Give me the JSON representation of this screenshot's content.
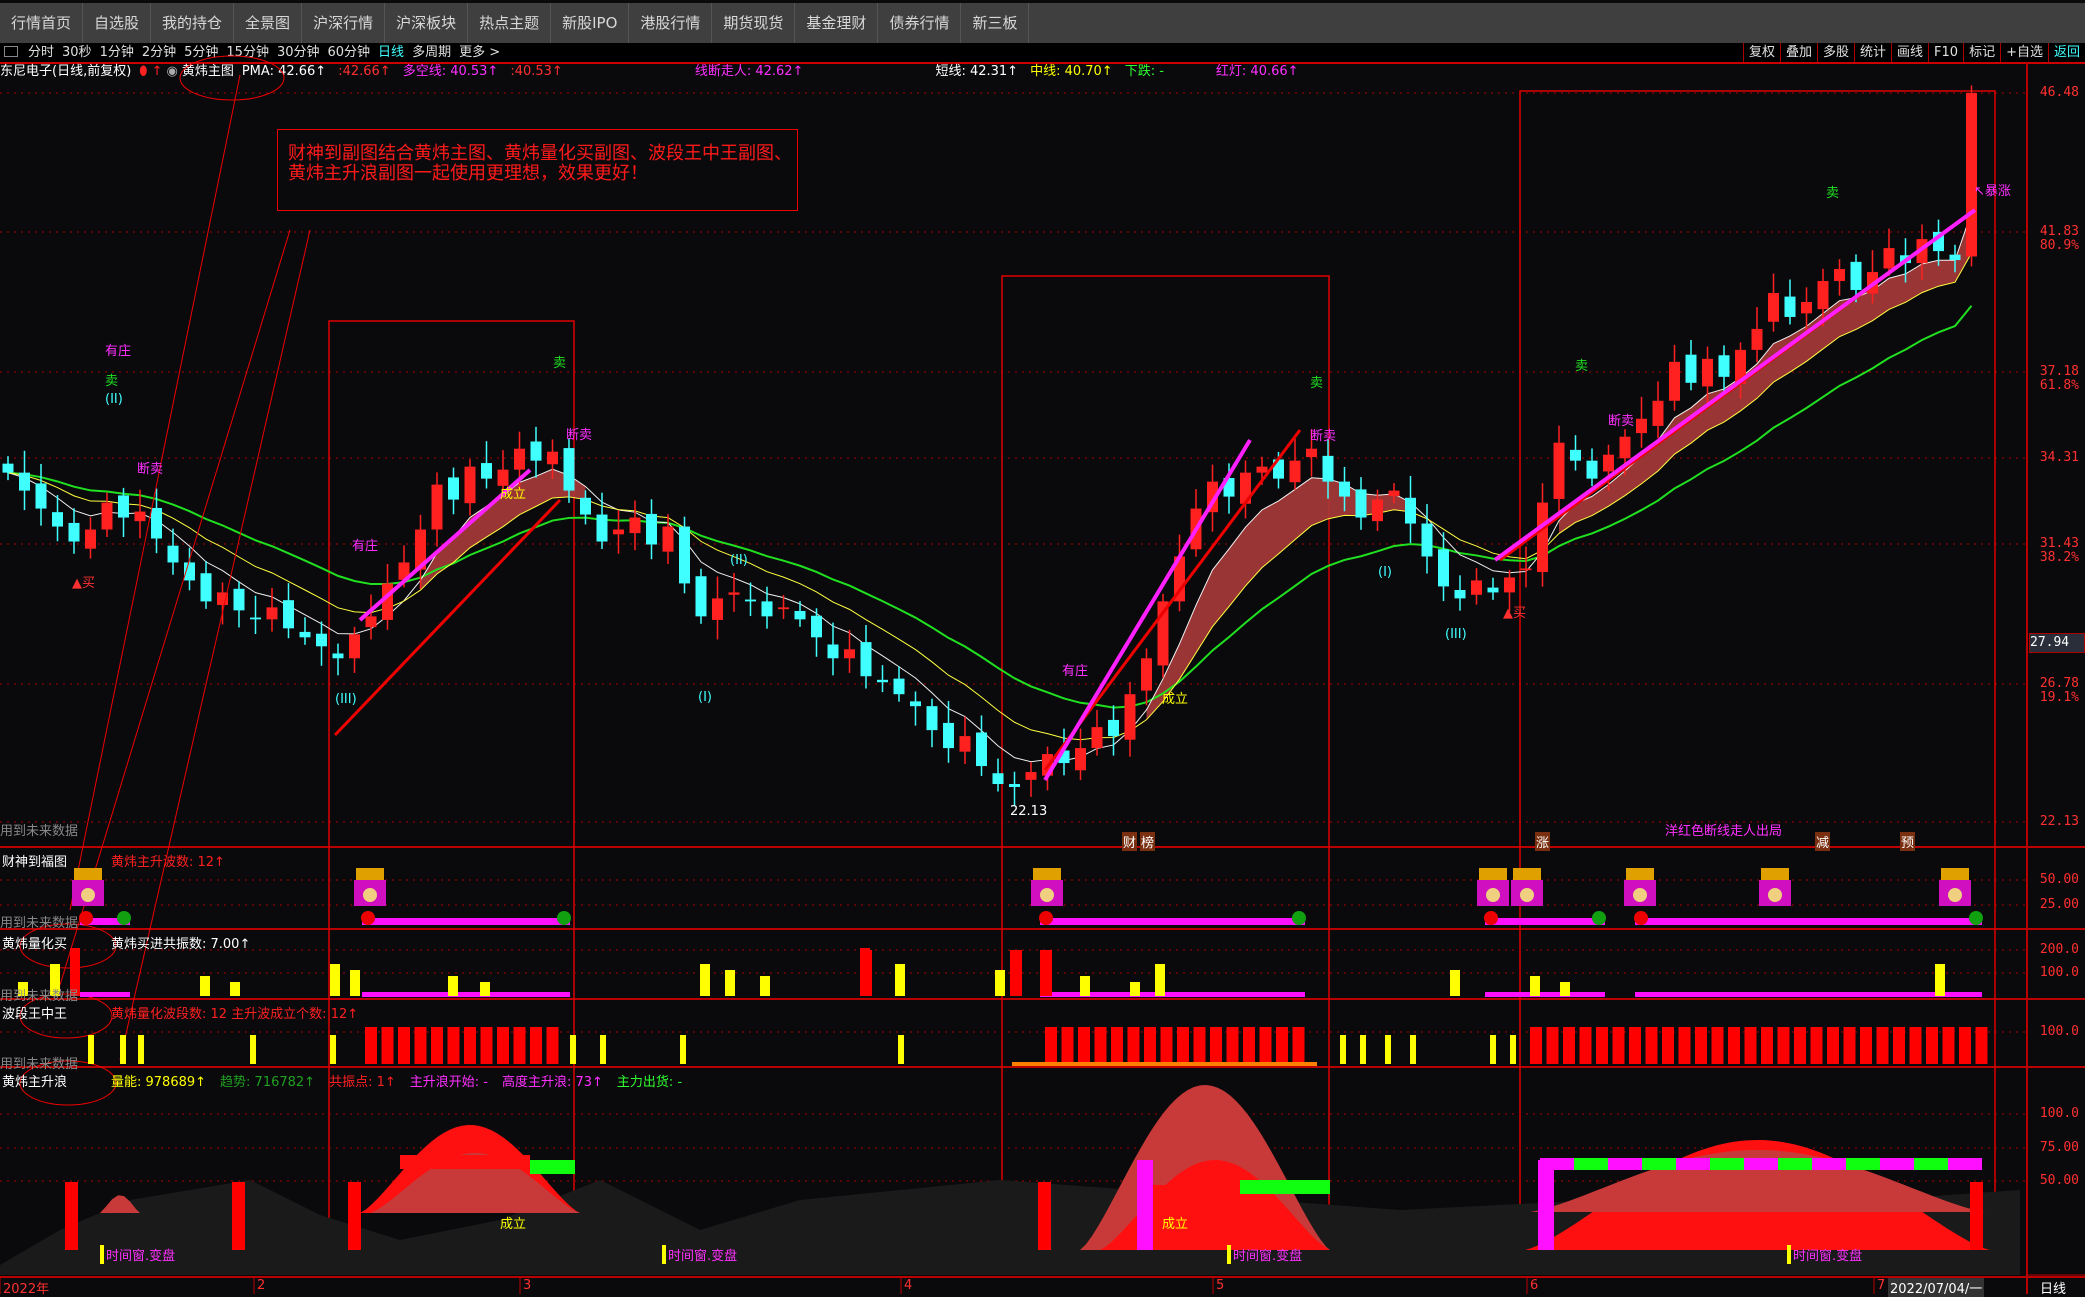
{
  "nav": [
    "行情首页",
    "自选股",
    "我的持仓",
    "全景图",
    "沪深行情",
    "沪深板块",
    "热点主题",
    "新股IPO",
    "港股行情",
    "期货现货",
    "基金理财",
    "债券行情",
    "新三板"
  ],
  "periods": {
    "items": [
      "分时",
      "30秒",
      "1分钟",
      "2分钟",
      "5分钟",
      "15分钟",
      "30分钟",
      "60分钟",
      "日线",
      "多周期",
      "更多 >"
    ],
    "active": "日线"
  },
  "tools": {
    "items": [
      "复权",
      "叠加",
      "多股",
      "统计",
      "画线",
      "F10",
      "标记",
      "+自选",
      "返回"
    ],
    "active": "返回"
  },
  "title": {
    "stock": "东尼电子(日线,前复权)",
    "indicator": "黄炜主图",
    "values": [
      {
        "text": "PMA: 42.66↑",
        "color": "#ffffff"
      },
      {
        "text": ":42.66↑",
        "color": "#ff3030"
      },
      {
        "text": "多空线: 40.53↑",
        "color": "#ff30ff"
      },
      {
        "text": ":40.53↑",
        "color": "#ff3030"
      },
      {
        "text": "线断走人: 42.62↑",
        "color": "#ff30ff"
      },
      {
        "text": "短线: 42.31↑",
        "color": "#ffffff"
      },
      {
        "text": "中线: 40.70↑",
        "color": "#ffff00"
      },
      {
        "text": "下跌: -",
        "color": "#30ff30"
      },
      {
        "text": "红灯: 40.66↑",
        "color": "#ff30ff"
      }
    ]
  },
  "note": "财神到副图结合黄炜主图、黄炜量化买副图、波段王中王副图、黄炜主升浪副图一起使用更理想，效果更好！",
  "price_axis": [
    {
      "v": "46.48",
      "p": ""
    },
    {
      "v": "41.83",
      "p": "80.9%"
    },
    {
      "v": "37.18",
      "p": "61.8%"
    },
    {
      "v": "34.31",
      "p": ""
    },
    {
      "v": "31.43",
      "p": "38.2%"
    },
    {
      "v": "26.78",
      "p": "19.1%"
    },
    {
      "v": "22.13",
      "p": ""
    }
  ],
  "current_price": "27.94",
  "chart": {
    "closes": [
      33.8,
      33.2,
      32.6,
      32.0,
      31.5,
      31.9,
      32.8,
      32.3,
      32.5,
      31.6,
      30.8,
      30.2,
      29.5,
      29.8,
      29.2,
      28.9,
      29.3,
      28.6,
      28.3,
      28.0,
      27.6,
      28.4,
      29.0,
      30.1,
      30.8,
      31.9,
      33.4,
      32.9,
      34.0,
      33.6,
      33.9,
      34.6,
      34.2,
      34.5,
      33.2,
      32.4,
      31.5,
      31.9,
      32.3,
      31.4,
      32.0,
      30.1,
      29.0,
      29.6,
      29.8,
      29.5,
      29.0,
      29.3,
      28.9,
      28.3,
      27.6,
      27.9,
      27.0,
      26.8,
      26.4,
      26.0,
      25.2,
      24.6,
      25.0,
      24.0,
      23.4,
      23.3,
      23.8,
      24.4,
      24.1,
      24.6,
      25.3,
      25.0,
      26.4,
      27.6,
      29.5,
      31.0,
      32.6,
      33.5,
      33.0,
      33.8,
      34.0,
      33.6,
      34.2,
      34.6,
      33.5,
      33.0,
      32.3,
      32.9,
      33.2,
      32.1,
      31.0,
      30.0,
      29.6,
      30.2,
      29.8,
      30.3,
      30.6,
      32.8,
      34.8,
      34.2,
      33.6,
      34.4,
      35.0,
      35.6,
      36.2,
      37.5,
      36.8,
      37.6,
      37.0,
      37.9,
      38.6,
      39.8,
      39.0,
      39.5,
      40.2,
      40.6,
      39.9,
      40.5,
      41.3,
      40.8,
      41.6,
      41.2,
      40.9,
      46.48
    ],
    "high_label": "46.48",
    "low_label": "22.13",
    "up_color": "#ff2020",
    "down_color": "#40ffff",
    "ma_long_color": "#20e020",
    "ribbon_color": "#a83a3a"
  },
  "annotations": [
    {
      "t": "有庄",
      "c": "#ff30ff"
    },
    {
      "t": "卖",
      "c": "#20e020"
    },
    {
      "t": "(II)",
      "c": "#40ffff"
    },
    {
      "t": "断卖",
      "c": "#ff30ff"
    },
    {
      "t": "▲买",
      "c": "#ff3030"
    },
    {
      "t": "有庄",
      "c": "#ff30ff"
    },
    {
      "t": "卖",
      "c": "#20e020"
    },
    {
      "t": "断卖",
      "c": "#ff30ff"
    },
    {
      "t": "成立",
      "c": "#ffff00"
    },
    {
      "t": "(III)",
      "c": "#40ffff"
    },
    {
      "t": "(II)",
      "c": "#40ffff"
    },
    {
      "t": "(I)",
      "c": "#40ffff"
    },
    {
      "t": "有庄",
      "c": "#ff30ff"
    },
    {
      "t": "成立",
      "c": "#ffff00"
    },
    {
      "t": "卖",
      "c": "#20e020"
    },
    {
      "t": "断卖",
      "c": "#ff30ff"
    },
    {
      "t": "(I)",
      "c": "#40ffff"
    },
    {
      "t": "(III)",
      "c": "#40ffff"
    },
    {
      "t": "▲买",
      "c": "#ff3030"
    },
    {
      "t": "卖",
      "c": "#20e020"
    },
    {
      "t": "断卖",
      "c": "#ff30ff"
    },
    {
      "t": "卖",
      "c": "#20e020"
    },
    {
      "t": "↖暴涨",
      "c": "#ff30ff"
    },
    {
      "t": "洋红色断线走人出局",
      "c": "#ff30ff"
    },
    {
      "t": "财",
      "c": "#ffffff"
    },
    {
      "t": "榜",
      "c": "#ffffff"
    },
    {
      "t": "涨",
      "c": "#ffffff"
    },
    {
      "t": "减",
      "c": "#ffffff"
    },
    {
      "t": "预",
      "c": "#ffffff"
    },
    {
      "t": "22.13",
      "c": "#ffffff"
    }
  ],
  "future_label": "用到未来数据",
  "panels": [
    {
      "name": "财神到福图",
      "values": [
        {
          "text": "黄炜主升波数: 12↑",
          "color": "#ff2020"
        }
      ],
      "axis": [
        "50.00",
        "25.00"
      ]
    },
    {
      "name": "黄炜量化买",
      "values": [
        {
          "text": "黄炜买进共振数: 7.00↑",
          "color": "#ffffff"
        }
      ],
      "axis": [
        "200.0",
        "100.0"
      ]
    },
    {
      "name": "波段王中王",
      "values": [
        {
          "text": "黄炜量化波段数: 12  主升波成立个数: 12↑",
          "color": "#ff2020"
        }
      ],
      "axis": [
        "100.0"
      ]
    },
    {
      "name": "黄炜主升浪",
      "values": [
        {
          "text": "量能: 978689↑",
          "color": "#ffff00"
        },
        {
          "text": "趋势: 716782↑",
          "color": "#20a020"
        },
        {
          "text": "共振点: 1↑",
          "color": "#ff2020"
        },
        {
          "text": "主升浪开始: -",
          "color": "#ff30ff"
        },
        {
          "text": "高度主升浪: 73↑",
          "color": "#ff30ff"
        },
        {
          "text": "主力出货: -",
          "color": "#30ff30"
        }
      ],
      "axis": [
        "100.0",
        "75.00",
        "50.00"
      ]
    }
  ],
  "panel4_labels": {
    "window": "时间窗.变盘",
    "established": "成立"
  },
  "date_axis": {
    "months": [
      "2022年",
      "2",
      "3",
      "4",
      "5",
      "6",
      "7"
    ],
    "cursor_date": "2022/07/04/一",
    "period": "日线"
  }
}
